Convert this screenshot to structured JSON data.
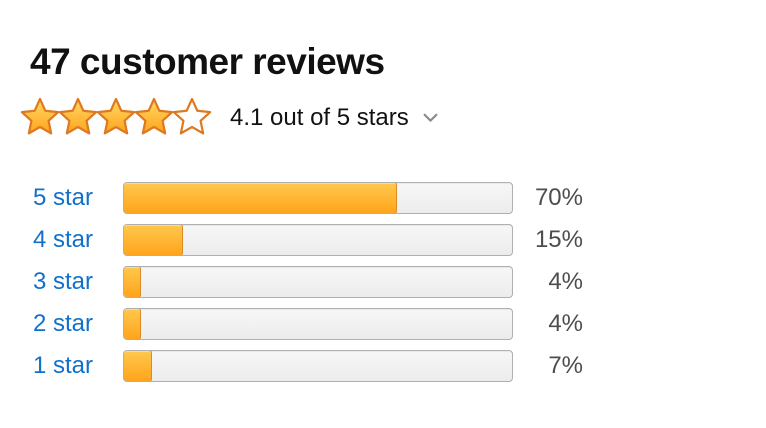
{
  "header": {
    "title": "47 customer reviews"
  },
  "rating_summary": {
    "value": "4.1",
    "max_stars": 5,
    "stars_filled": 4,
    "stars_empty": 1,
    "label": "4.1 out of 5 stars",
    "chevron_icon": "chevron-down"
  },
  "histogram": {
    "rows": [
      {
        "label": "5 star",
        "value": 70,
        "percent_label": "70%"
      },
      {
        "label": "4 star",
        "value": 15,
        "percent_label": "15%"
      },
      {
        "label": "3 star",
        "value": 4,
        "percent_label": "4%"
      },
      {
        "label": "2 star",
        "value": 4,
        "percent_label": "4%"
      },
      {
        "label": "1 star",
        "value": 7,
        "percent_label": "7%"
      }
    ]
  },
  "chart_data": {
    "type": "bar",
    "orientation": "horizontal",
    "title": "47 customer reviews",
    "subtitle": "4.1 out of 5 stars",
    "categories": [
      "5 star",
      "4 star",
      "3 star",
      "2 star",
      "1 star"
    ],
    "values": [
      70,
      15,
      4,
      4,
      7
    ],
    "unit": "percent",
    "xlim": [
      0,
      100
    ],
    "data_labels": [
      "70%",
      "15%",
      "4%",
      "4%",
      "7%"
    ],
    "grid": false,
    "legend": false
  },
  "colors": {
    "title_text": "#111111",
    "link_blue": "#1170ca",
    "percent_text": "#4d4d4d",
    "star_fill_top": "#ffd965",
    "star_fill_bottom": "#ffa41c",
    "star_stroke": "#de7921",
    "bar_fill_top": "#ffc84d",
    "bar_fill_bottom": "#ffa41c",
    "bar_fill_border": "#de8a23",
    "bar_track_top": "#f7f7f7",
    "bar_track_bottom": "#ececec",
    "bar_track_border": "#b0b0b0",
    "chevron": "#8a8a8a",
    "page_bg": "#ffffff"
  }
}
